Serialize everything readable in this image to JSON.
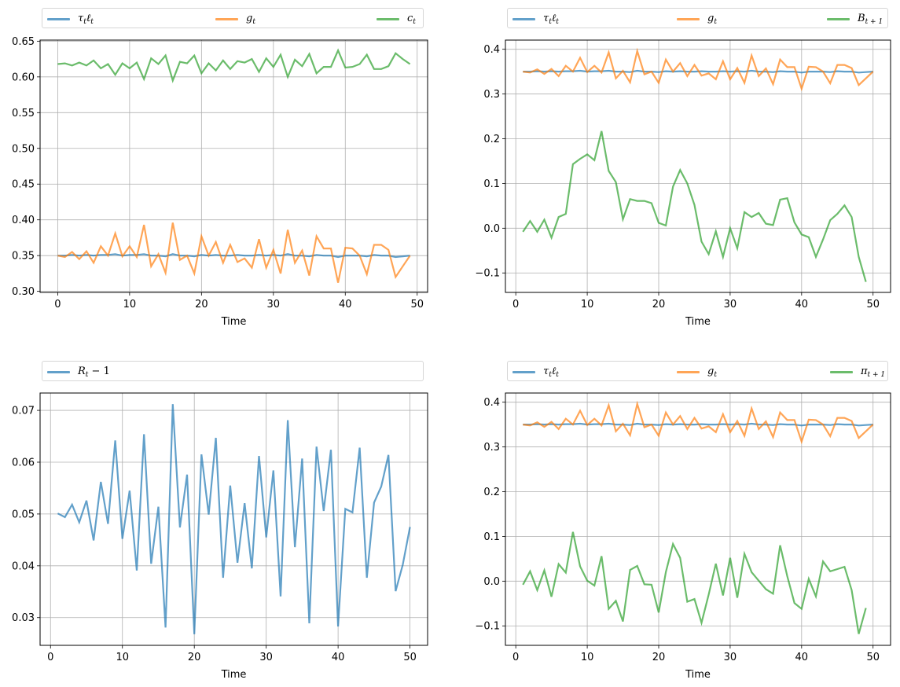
{
  "colors": {
    "tau": "#1f77b4",
    "g": "#ff7f0e",
    "third": "#2ca02c",
    "grid": "#b0b0b0",
    "frame": "#000000"
  },
  "chart_data": [
    {
      "type": "line",
      "title": "",
      "xlabel": "Time",
      "ylabel": "",
      "xlim": [
        -2.45,
        51.45
      ],
      "ylim": [
        0.2985,
        0.6515
      ],
      "xticks": [
        "0",
        "10",
        "20",
        "30",
        "40",
        "50"
      ],
      "yticks": [
        "0.30",
        "0.35",
        "0.40",
        "0.45",
        "0.50",
        "0.55",
        "0.60",
        "0.65"
      ],
      "grid": true,
      "legend": {
        "placement": "top-above",
        "labels": [
          "τtℓt",
          "gt",
          "ct"
        ]
      },
      "x_start": 0,
      "series": [
        {
          "name": "τtℓt",
          "color_key": "tau",
          "values": [
            0.35,
            0.35,
            0.351,
            0.35,
            0.351,
            0.35,
            0.351,
            0.351,
            0.352,
            0.35,
            0.351,
            0.351,
            0.352,
            0.35,
            0.35,
            0.349,
            0.352,
            0.35,
            0.35,
            0.349,
            0.351,
            0.35,
            0.351,
            0.35,
            0.35,
            0.351,
            0.35,
            0.35,
            0.351,
            0.35,
            0.351,
            0.35,
            0.352,
            0.35,
            0.35,
            0.349,
            0.351,
            0.35,
            0.35,
            0.348,
            0.35,
            0.35,
            0.35,
            0.349,
            0.351,
            0.35,
            0.35,
            0.348,
            0.349,
            0.35
          ]
        },
        {
          "name": "gt",
          "color_key": "g",
          "values": [
            0.35,
            0.348,
            0.355,
            0.345,
            0.356,
            0.34,
            0.363,
            0.35,
            0.381,
            0.349,
            0.363,
            0.348,
            0.393,
            0.335,
            0.352,
            0.326,
            0.396,
            0.344,
            0.35,
            0.325,
            0.377,
            0.35,
            0.369,
            0.34,
            0.365,
            0.341,
            0.346,
            0.333,
            0.373,
            0.333,
            0.358,
            0.325,
            0.386,
            0.34,
            0.357,
            0.322,
            0.377,
            0.36,
            0.36,
            0.312,
            0.361,
            0.36,
            0.35,
            0.324,
            0.365,
            0.365,
            0.358,
            0.32,
            0.335,
            0.35
          ]
        },
        {
          "name": "ct",
          "color_key": "third",
          "values": [
            0.618,
            0.619,
            0.616,
            0.62,
            0.616,
            0.623,
            0.612,
            0.618,
            0.603,
            0.619,
            0.612,
            0.62,
            0.597,
            0.626,
            0.618,
            0.63,
            0.595,
            0.621,
            0.619,
            0.63,
            0.605,
            0.619,
            0.609,
            0.623,
            0.611,
            0.622,
            0.62,
            0.625,
            0.607,
            0.626,
            0.614,
            0.631,
            0.6,
            0.624,
            0.615,
            0.632,
            0.605,
            0.614,
            0.614,
            0.637,
            0.613,
            0.614,
            0.618,
            0.631,
            0.611,
            0.611,
            0.615,
            0.633,
            0.625,
            0.618
          ]
        }
      ]
    },
    {
      "type": "line",
      "title": "",
      "xlabel": "Time",
      "ylabel": "",
      "xlim": [
        -1.45,
        52.45
      ],
      "ylim": [
        -0.1435,
        0.4205
      ],
      "xticks": [
        "0",
        "10",
        "20",
        "30",
        "40",
        "50"
      ],
      "yticks": [
        "−0.1",
        "0.0",
        "0.1",
        "0.2",
        "0.3",
        "0.4"
      ],
      "grid": true,
      "legend": {
        "placement": "top-above",
        "labels": [
          "τtℓt",
          "gt",
          "Bt+1"
        ]
      },
      "x_start": 1,
      "series": [
        {
          "name": "τtℓt",
          "color_key": "tau",
          "values": [
            0.35,
            0.35,
            0.351,
            0.35,
            0.351,
            0.35,
            0.351,
            0.351,
            0.352,
            0.35,
            0.351,
            0.351,
            0.352,
            0.35,
            0.35,
            0.349,
            0.352,
            0.35,
            0.35,
            0.349,
            0.351,
            0.35,
            0.351,
            0.35,
            0.35,
            0.351,
            0.35,
            0.35,
            0.351,
            0.35,
            0.351,
            0.35,
            0.352,
            0.35,
            0.35,
            0.349,
            0.351,
            0.35,
            0.35,
            0.348,
            0.35,
            0.35,
            0.35,
            0.349,
            0.351,
            0.35,
            0.35,
            0.348,
            0.349,
            0.35
          ]
        },
        {
          "name": "gt",
          "color_key": "g",
          "values": [
            0.35,
            0.348,
            0.355,
            0.345,
            0.356,
            0.34,
            0.363,
            0.35,
            0.381,
            0.349,
            0.363,
            0.348,
            0.393,
            0.335,
            0.352,
            0.326,
            0.396,
            0.344,
            0.35,
            0.325,
            0.377,
            0.35,
            0.369,
            0.34,
            0.365,
            0.341,
            0.346,
            0.333,
            0.373,
            0.333,
            0.358,
            0.325,
            0.386,
            0.34,
            0.357,
            0.322,
            0.377,
            0.36,
            0.36,
            0.312,
            0.361,
            0.36,
            0.35,
            0.324,
            0.365,
            0.365,
            0.358,
            0.32,
            0.335,
            0.35
          ]
        },
        {
          "name": "Bt+1",
          "color_key": "third",
          "values": [
            -0.008,
            0.016,
            -0.008,
            0.019,
            -0.021,
            0.025,
            0.032,
            0.143,
            0.155,
            0.165,
            0.152,
            0.217,
            0.128,
            0.103,
            0.02,
            0.065,
            0.061,
            0.061,
            0.056,
            0.012,
            0.006,
            0.093,
            0.13,
            0.1,
            0.052,
            -0.03,
            -0.058,
            -0.007,
            -0.064,
            0.0,
            -0.045,
            0.036,
            0.025,
            0.034,
            0.01,
            0.007,
            0.064,
            0.067,
            0.013,
            -0.014,
            -0.02,
            -0.064,
            -0.025,
            0.018,
            0.032,
            0.051,
            0.025,
            -0.064,
            -0.12
          ]
        }
      ]
    },
    {
      "type": "line",
      "title": "",
      "xlabel": "Time",
      "ylabel": "",
      "xlim": [
        -1.45,
        52.45
      ],
      "ylim": [
        0.02465,
        0.07335
      ],
      "xticks": [
        "0",
        "10",
        "20",
        "30",
        "40",
        "50"
      ],
      "yticks": [
        "0.03",
        "0.04",
        "0.05",
        "0.06",
        "0.07"
      ],
      "grid": true,
      "legend": {
        "placement": "top-above",
        "labels": [
          "Rt − 1"
        ]
      },
      "x_start": 1,
      "series": [
        {
          "name": "Rt − 1",
          "color_key": "tau",
          "values": [
            0.0501,
            0.0494,
            0.0518,
            0.0484,
            0.0526,
            0.0449,
            0.0562,
            0.0481,
            0.0642,
            0.0452,
            0.0545,
            0.0391,
            0.0654,
            0.0404,
            0.0514,
            0.0281,
            0.0712,
            0.0474,
            0.0576,
            0.0268,
            0.0615,
            0.0499,
            0.0647,
            0.0377,
            0.0555,
            0.0406,
            0.0521,
            0.0395,
            0.0612,
            0.0455,
            0.0584,
            0.0341,
            0.0681,
            0.0436,
            0.0607,
            0.0289,
            0.063,
            0.0506,
            0.0624,
            0.0283,
            0.051,
            0.0503,
            0.0628,
            0.0377,
            0.0522,
            0.0553,
            0.0614,
            0.0351,
            0.0402,
            0.0475
          ]
        }
      ]
    },
    {
      "type": "line",
      "title": "",
      "xlabel": "Time",
      "ylabel": "",
      "xlim": [
        -1.45,
        52.45
      ],
      "ylim": [
        -0.1435,
        0.4205
      ],
      "xticks": [
        "0",
        "10",
        "20",
        "30",
        "40",
        "50"
      ],
      "yticks": [
        "−0.1",
        "0.0",
        "0.1",
        "0.2",
        "0.3",
        "0.4"
      ],
      "grid": true,
      "legend": {
        "placement": "top-above",
        "labels": [
          "τtℓt",
          "gt",
          "πt+1"
        ]
      },
      "x_start": 1,
      "series": [
        {
          "name": "τtℓt",
          "color_key": "tau",
          "values": [
            0.35,
            0.35,
            0.351,
            0.35,
            0.351,
            0.35,
            0.351,
            0.351,
            0.352,
            0.35,
            0.351,
            0.351,
            0.352,
            0.35,
            0.35,
            0.349,
            0.352,
            0.35,
            0.35,
            0.349,
            0.351,
            0.35,
            0.351,
            0.35,
            0.35,
            0.351,
            0.35,
            0.35,
            0.351,
            0.35,
            0.351,
            0.35,
            0.352,
            0.35,
            0.35,
            0.349,
            0.351,
            0.35,
            0.35,
            0.348,
            0.35,
            0.35,
            0.35,
            0.349,
            0.351,
            0.35,
            0.35,
            0.348,
            0.349,
            0.35
          ]
        },
        {
          "name": "gt",
          "color_key": "g",
          "values": [
            0.35,
            0.348,
            0.355,
            0.345,
            0.356,
            0.34,
            0.363,
            0.35,
            0.381,
            0.349,
            0.363,
            0.348,
            0.393,
            0.335,
            0.352,
            0.326,
            0.396,
            0.344,
            0.35,
            0.325,
            0.377,
            0.35,
            0.369,
            0.34,
            0.365,
            0.341,
            0.346,
            0.333,
            0.373,
            0.333,
            0.358,
            0.325,
            0.386,
            0.34,
            0.357,
            0.322,
            0.377,
            0.36,
            0.36,
            0.312,
            0.361,
            0.36,
            0.35,
            0.324,
            0.365,
            0.365,
            0.358,
            0.32,
            0.335,
            0.35
          ]
        },
        {
          "name": "πt+1",
          "color_key": "third",
          "values": [
            -0.008,
            0.022,
            -0.02,
            0.024,
            -0.035,
            0.038,
            0.019,
            0.11,
            0.033,
            0.001,
            -0.01,
            0.056,
            -0.062,
            -0.044,
            -0.09,
            0.025,
            0.034,
            -0.007,
            -0.008,
            -0.07,
            0.02,
            0.083,
            0.052,
            -0.046,
            -0.04,
            -0.093,
            -0.03,
            0.039,
            -0.032,
            0.052,
            -0.037,
            0.061,
            0.02,
            0.001,
            -0.018,
            -0.028,
            0.08,
            0.011,
            -0.049,
            -0.062,
            0.005,
            -0.034,
            0.044,
            0.022,
            0.027,
            0.032,
            -0.02,
            -0.118,
            -0.06
          ]
        }
      ]
    }
  ],
  "legends": [
    {
      "items": [
        {
          "base": "τ",
          "sub1": "t",
          "mid": "ℓ",
          "sub2": "t"
        },
        {
          "base": "g",
          "sub1": "t"
        },
        {
          "base": "c",
          "sub1": "t"
        }
      ]
    },
    {
      "items": [
        {
          "base": "τ",
          "sub1": "t",
          "mid": "ℓ",
          "sub2": "t"
        },
        {
          "base": "g",
          "sub1": "t"
        },
        {
          "base": "B",
          "sub1": "t + 1"
        }
      ]
    },
    {
      "items": [
        {
          "base": "R",
          "sub1": "t",
          "mid": " − 1"
        }
      ]
    },
    {
      "items": [
        {
          "base": "τ",
          "sub1": "t",
          "mid": "ℓ",
          "sub2": "t"
        },
        {
          "base": "g",
          "sub1": "t"
        },
        {
          "base": "π",
          "sub1": "t + 1"
        }
      ]
    }
  ]
}
